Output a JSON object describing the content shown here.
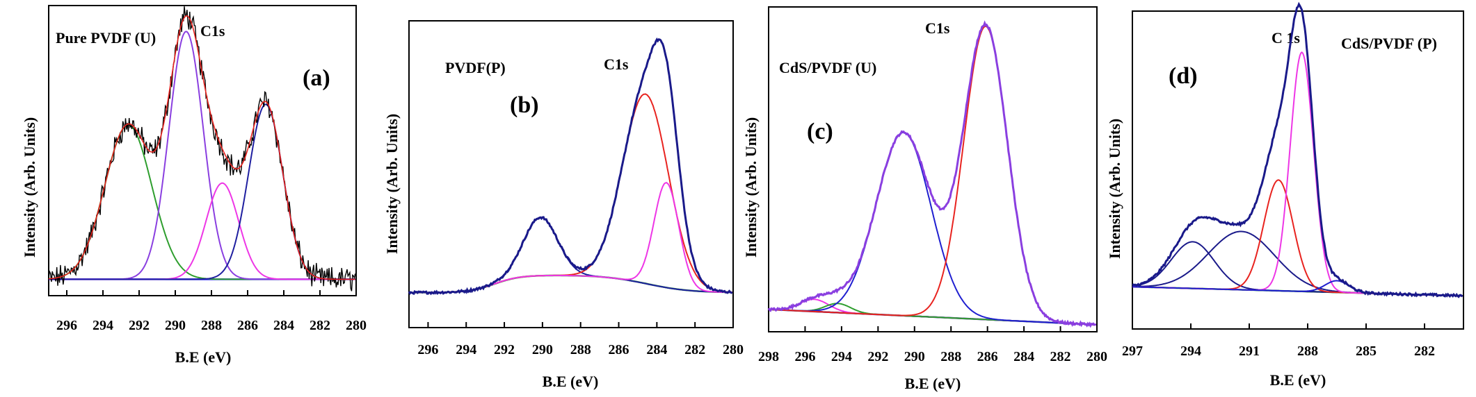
{
  "chart_data": [
    {
      "panel": "a",
      "type": "line",
      "panel_label": "(a)",
      "title": "",
      "sample_label": "Pure PVDF (U)",
      "peak_label": "C1s",
      "xlabel": "B.E (eV)",
      "ylabel": "Intensity (Arb. Units)",
      "xlim": [
        297,
        280
      ],
      "ylim": [
        0,
        1
      ],
      "x_ticks": [
        "296",
        "294",
        "292",
        "290",
        "288",
        "286",
        "284",
        "282",
        "280"
      ],
      "grid": false,
      "curves": {
        "raw": "#000000",
        "fit_envelope": "#e8231f",
        "background": "#1a1aff",
        "components": [
          {
            "center": 292.6,
            "height": 0.53,
            "width": 1.3,
            "color": "#2e9e2e"
          },
          {
            "center": 289.4,
            "height": 0.85,
            "width": 0.95,
            "color": "#8a3fe0"
          },
          {
            "center": 287.4,
            "height": 0.33,
            "width": 0.9,
            "color": "#ee36e6"
          },
          {
            "center": 285.0,
            "height": 0.6,
            "width": 0.95,
            "color": "#1f1fa0"
          }
        ],
        "noisy": true,
        "background_level": 0.03
      }
    },
    {
      "panel": "b",
      "type": "line",
      "panel_label": "(b)",
      "title": "",
      "sample_label": "PVDF(P)",
      "peak_label": "C1s",
      "xlabel": "B.E (eV)",
      "ylabel": "Intensity (Arb. Units)",
      "xlim": [
        297,
        280
      ],
      "ylim": [
        0,
        1
      ],
      "x_ticks": [
        "296",
        "294",
        "292",
        "290",
        "288",
        "286",
        "284",
        "282",
        "280"
      ],
      "grid": false,
      "curves": {
        "raw": "#1a1a8a",
        "fit_envelope": "#1a1a8a",
        "background": "#2e9e2e",
        "components": [
          {
            "center": 290.1,
            "height": 0.2,
            "width": 0.9,
            "color": "#1f1fa0"
          },
          {
            "center": 284.6,
            "height": 0.65,
            "width": 1.2,
            "color": "#e8231f"
          },
          {
            "center": 283.5,
            "height": 0.36,
            "width": 0.65,
            "color": "#ee36e6"
          }
        ],
        "noisy": false,
        "background_level": 0.02
      }
    },
    {
      "panel": "c",
      "type": "line",
      "panel_label": "(c)",
      "title": "",
      "sample_label": "CdS/PVDF (U)",
      "peak_label": "C1s",
      "xlabel": "B.E (eV)",
      "ylabel": "Intensity (Arb. Units)",
      "xlim": [
        298,
        280
      ],
      "ylim": [
        0,
        1
      ],
      "x_ticks": [
        "298",
        "296",
        "294",
        "292",
        "290",
        "288",
        "286",
        "284",
        "282",
        "280"
      ],
      "grid": false,
      "curves": {
        "raw": "#8a3fe0",
        "fit_envelope": "#8a3fe0",
        "background": "#1a1a8a",
        "components": [
          {
            "center": 295.5,
            "height": 0.04,
            "width": 0.8,
            "color": "#ee36e6"
          },
          {
            "center": 294.2,
            "height": 0.03,
            "width": 0.7,
            "color": "#2e9e2e"
          },
          {
            "center": 290.6,
            "height": 0.6,
            "width": 1.5,
            "color": "#1f1fd0"
          },
          {
            "center": 286.1,
            "height": 0.96,
            "width": 1.2,
            "color": "#e8231f"
          }
        ],
        "noisy": false,
        "background_level": 0.02
      }
    },
    {
      "panel": "d",
      "type": "line",
      "panel_label": "(d)",
      "title": "",
      "sample_label": "CdS/PVDF (P)",
      "peak_label": "C 1s",
      "xlabel": "B.E (eV)",
      "ylabel": "Intensity (Arb. Units)",
      "xlim": [
        297,
        280
      ],
      "ylim": [
        0,
        1
      ],
      "x_ticks": [
        "297",
        "294",
        "291",
        "288",
        "285",
        "282"
      ],
      "grid": false,
      "curves": {
        "raw": "#1a1a8a",
        "fit_envelope": "#1a1a8a",
        "background": "#2e9e2e",
        "components": [
          {
            "center": 293.9,
            "height": 0.16,
            "width": 1.1,
            "color": "#1a1a8a"
          },
          {
            "center": 291.4,
            "height": 0.2,
            "width": 1.7,
            "color": "#1a1a8a"
          },
          {
            "center": 289.5,
            "height": 0.38,
            "width": 0.75,
            "color": "#e8231f"
          },
          {
            "center": 288.3,
            "height": 0.82,
            "width": 0.6,
            "color": "#ee36e6"
          },
          {
            "center": 286.5,
            "height": 0.04,
            "width": 0.6,
            "color": "#1f1fd0"
          }
        ],
        "noisy": false,
        "background_level": 0.02
      }
    }
  ]
}
